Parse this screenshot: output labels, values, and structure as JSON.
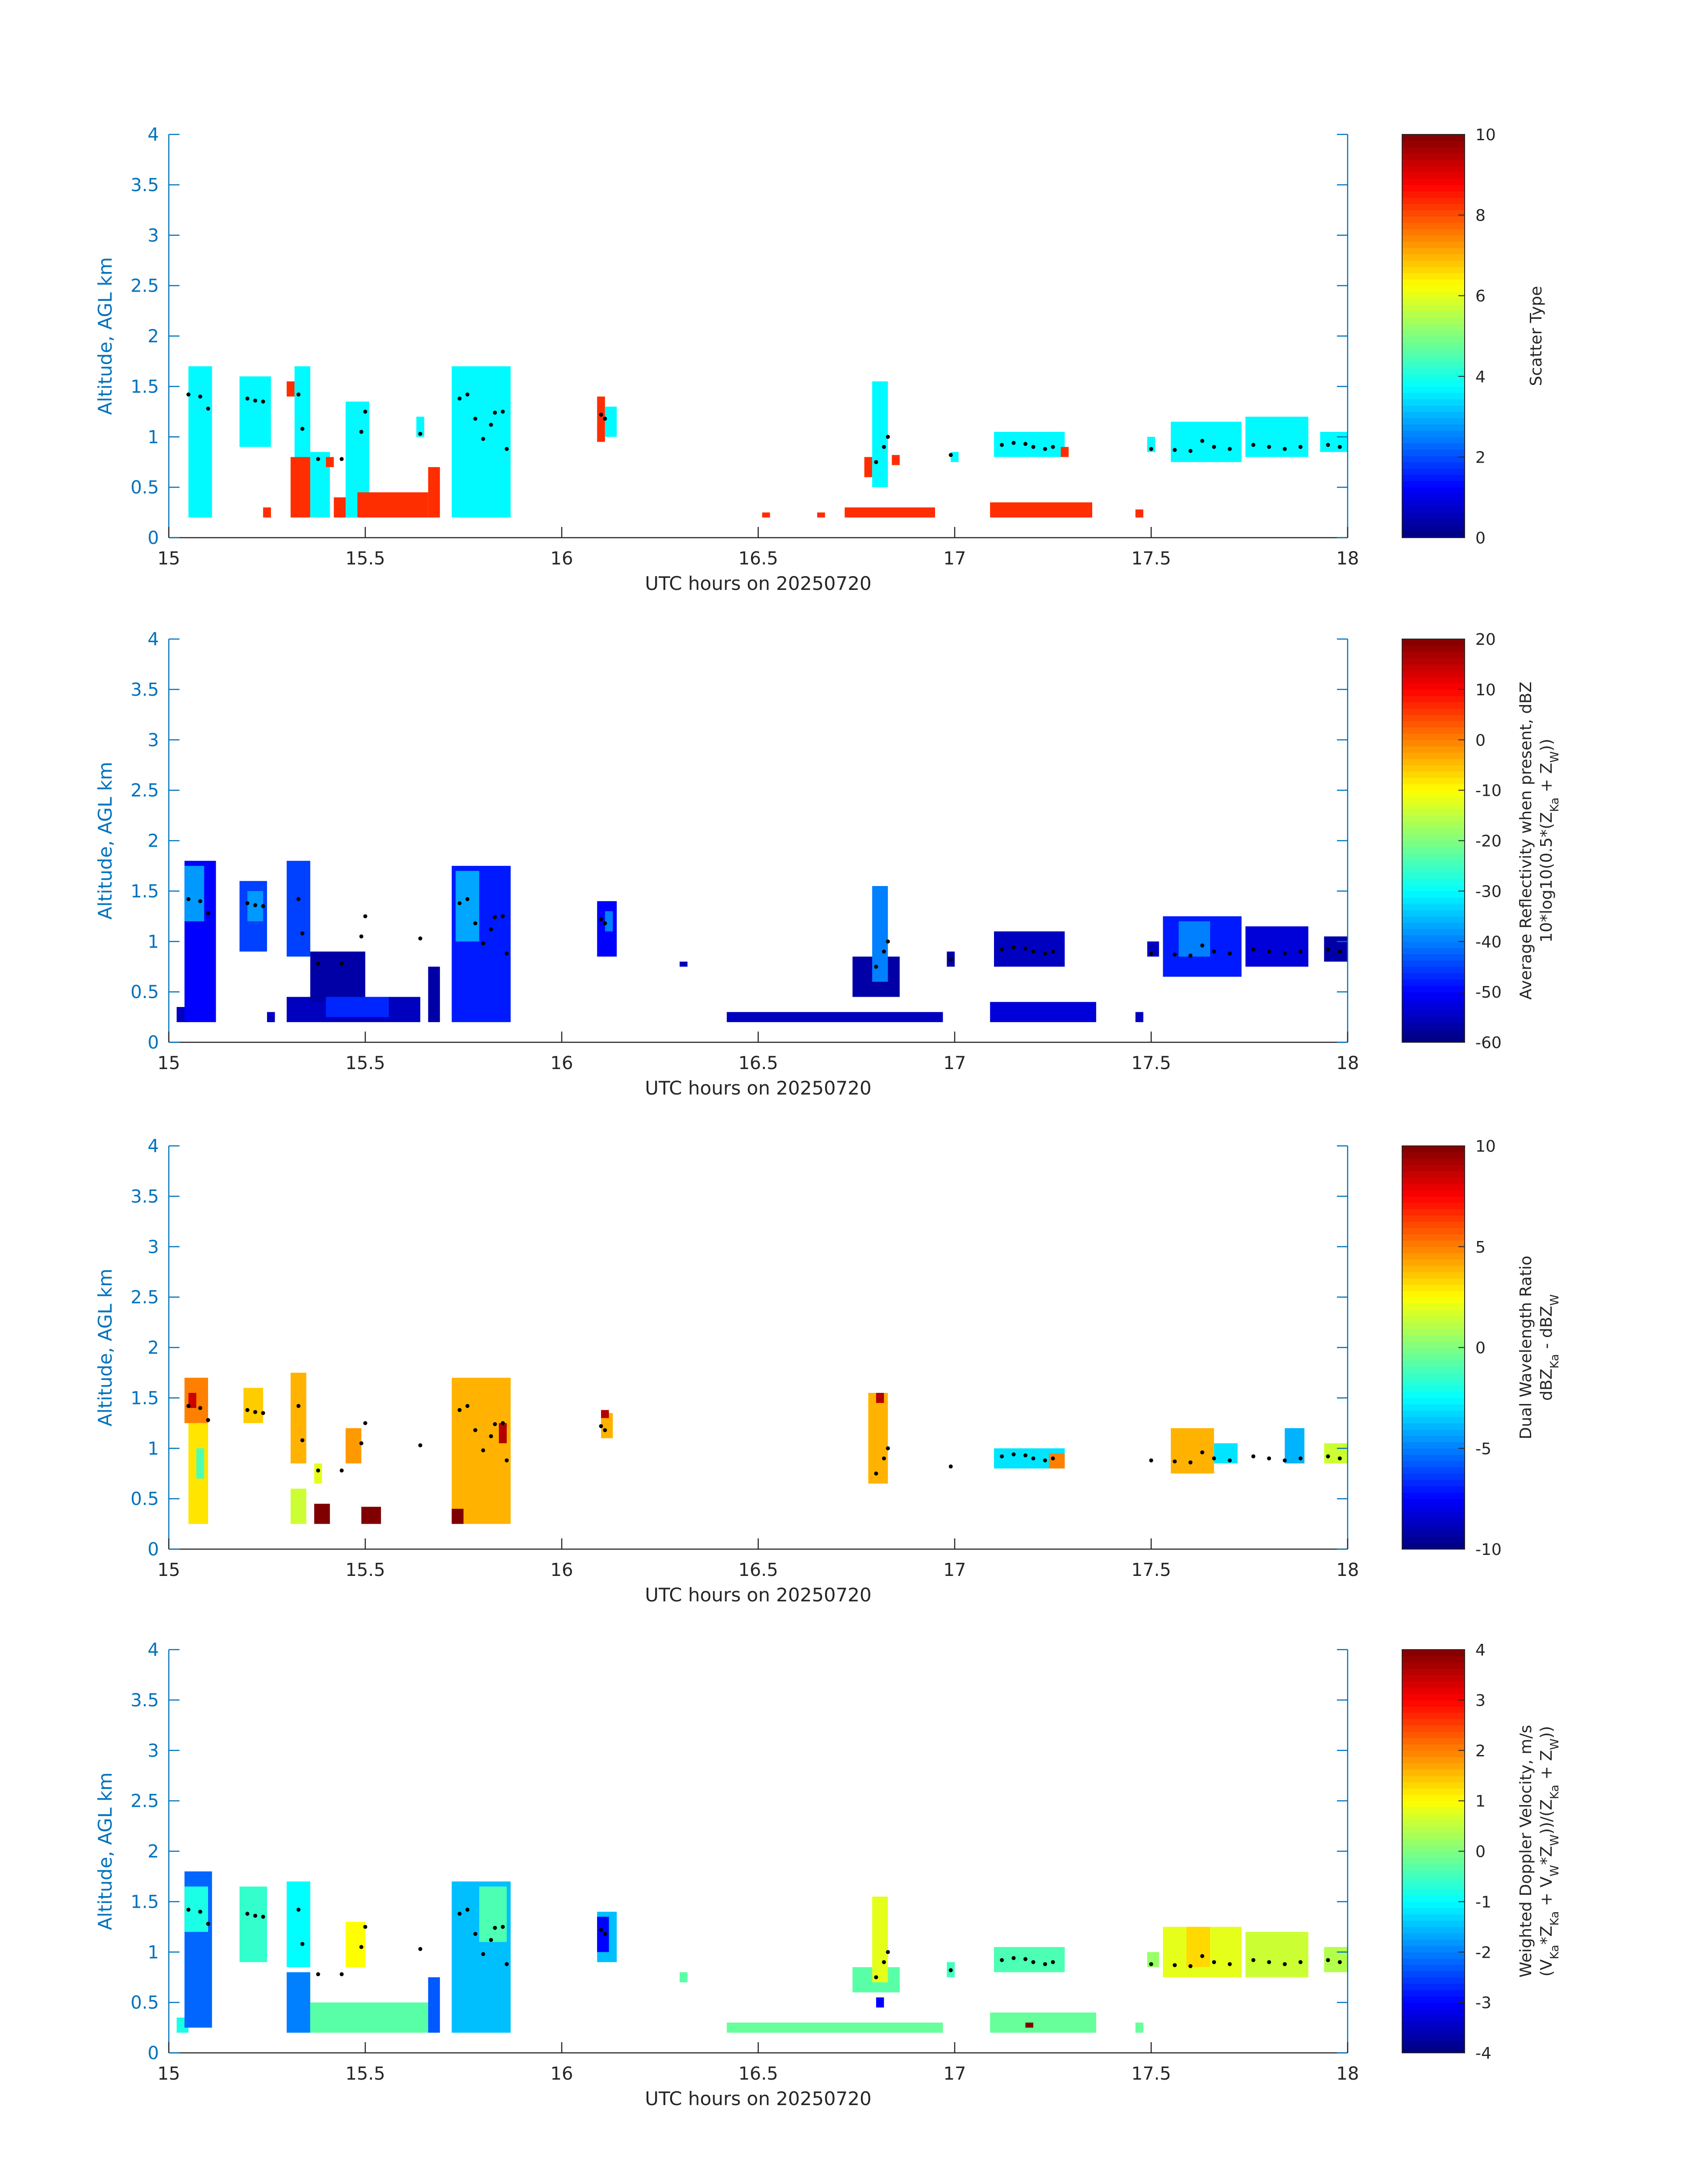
{
  "figure": {
    "date": "20250720"
  },
  "chart_data": [
    {
      "type": "heatmap",
      "id": "scatter-type",
      "xlabel": "UTC hours on 20250720",
      "ylabel": "Altitude, AGL km",
      "xlim": [
        15,
        18
      ],
      "ylim": [
        0,
        4
      ],
      "x_ticks": [
        "15",
        "15.5",
        "16",
        "16.5",
        "17",
        "17.5",
        "18"
      ],
      "y_ticks": [
        "0",
        "0.5",
        "1",
        "1.5",
        "2",
        "2.5",
        "3",
        "3.5",
        "4"
      ],
      "colorbar": {
        "label_lines": [
          "Scatter Type"
        ],
        "range": [
          0,
          10
        ],
        "ticks": [
          "0",
          "2",
          "4",
          "6",
          "8",
          "10"
        ]
      },
      "cells": [
        {
          "x0": 15.05,
          "x1": 15.11,
          "y0": 0.2,
          "y1": 1.7,
          "value": 3.7
        },
        {
          "x0": 15.18,
          "x1": 15.26,
          "y0": 0.9,
          "y1": 1.6,
          "value": 3.7
        },
        {
          "x0": 15.24,
          "x1": 15.26,
          "y0": 0.2,
          "y1": 0.3,
          "value": 8.3
        },
        {
          "x0": 15.3,
          "x1": 15.32,
          "y0": 1.4,
          "y1": 1.55,
          "value": 8.3
        },
        {
          "x0": 15.31,
          "x1": 15.36,
          "y0": 0.2,
          "y1": 0.8,
          "value": 8.3
        },
        {
          "x0": 15.32,
          "x1": 15.36,
          "y0": 0.8,
          "y1": 1.7,
          "value": 3.7
        },
        {
          "x0": 15.36,
          "x1": 15.41,
          "y0": 0.2,
          "y1": 0.85,
          "value": 3.7
        },
        {
          "x0": 15.4,
          "x1": 15.42,
          "y0": 0.7,
          "y1": 0.8,
          "value": 8.3
        },
        {
          "x0": 15.42,
          "x1": 15.46,
          "y0": 0.2,
          "y1": 0.4,
          "value": 8.3
        },
        {
          "x0": 15.45,
          "x1": 15.51,
          "y0": 0.2,
          "y1": 1.35,
          "value": 3.7
        },
        {
          "x0": 15.48,
          "x1": 15.66,
          "y0": 0.2,
          "y1": 0.45,
          "value": 8.3
        },
        {
          "x0": 15.63,
          "x1": 15.65,
          "y0": 1.0,
          "y1": 1.2,
          "value": 3.7
        },
        {
          "x0": 15.66,
          "x1": 15.69,
          "y0": 0.2,
          "y1": 0.7,
          "value": 8.3
        },
        {
          "x0": 15.72,
          "x1": 15.87,
          "y0": 0.2,
          "y1": 1.7,
          "value": 3.7
        },
        {
          "x0": 16.09,
          "x1": 16.11,
          "y0": 0.95,
          "y1": 1.4,
          "value": 8.3
        },
        {
          "x0": 16.11,
          "x1": 16.14,
          "y0": 1.0,
          "y1": 1.3,
          "value": 3.7
        },
        {
          "x0": 16.51,
          "x1": 16.53,
          "y0": 0.2,
          "y1": 0.25,
          "value": 8.3
        },
        {
          "x0": 16.65,
          "x1": 16.67,
          "y0": 0.2,
          "y1": 0.25,
          "value": 8.3
        },
        {
          "x0": 16.72,
          "x1": 16.95,
          "y0": 0.2,
          "y1": 0.3,
          "value": 8.3
        },
        {
          "x0": 16.77,
          "x1": 16.79,
          "y0": 0.6,
          "y1": 0.8,
          "value": 8.3
        },
        {
          "x0": 16.79,
          "x1": 16.83,
          "y0": 0.5,
          "y1": 1.55,
          "value": 3.7
        },
        {
          "x0": 16.84,
          "x1": 16.86,
          "y0": 0.72,
          "y1": 0.82,
          "value": 8.3
        },
        {
          "x0": 16.99,
          "x1": 17.01,
          "y0": 0.75,
          "y1": 0.85,
          "value": 3.7
        },
        {
          "x0": 17.09,
          "x1": 17.35,
          "y0": 0.2,
          "y1": 0.35,
          "value": 8.3
        },
        {
          "x0": 17.1,
          "x1": 17.28,
          "y0": 0.8,
          "y1": 1.05,
          "value": 3.7
        },
        {
          "x0": 17.27,
          "x1": 17.29,
          "y0": 0.8,
          "y1": 0.9,
          "value": 8.3
        },
        {
          "x0": 17.46,
          "x1": 17.48,
          "y0": 0.2,
          "y1": 0.28,
          "value": 8.3
        },
        {
          "x0": 17.49,
          "x1": 17.51,
          "y0": 0.85,
          "y1": 1.0,
          "value": 3.7
        },
        {
          "x0": 17.55,
          "x1": 17.73,
          "y0": 0.75,
          "y1": 1.15,
          "value": 3.7
        },
        {
          "x0": 17.74,
          "x1": 17.9,
          "y0": 0.8,
          "y1": 1.2,
          "value": 3.7
        },
        {
          "x0": 17.93,
          "x1": 18.0,
          "y0": 0.85,
          "y1": 1.05,
          "value": 3.7
        }
      ]
    },
    {
      "type": "heatmap",
      "id": "reflectivity",
      "xlabel": "UTC hours on 20250720",
      "ylabel": "Altitude, AGL km",
      "xlim": [
        15,
        18
      ],
      "ylim": [
        0,
        4
      ],
      "x_ticks": [
        "15",
        "15.5",
        "16",
        "16.5",
        "17",
        "17.5",
        "18"
      ],
      "y_ticks": [
        "0",
        "0.5",
        "1",
        "1.5",
        "2",
        "2.5",
        "3",
        "3.5",
        "4"
      ],
      "colorbar": {
        "label_lines": [
          "Average Reflectivity when present, dBZ",
          "10*log10(0.5*(Z_Ka + Z_W))"
        ],
        "range": [
          -60,
          20
        ],
        "ticks": [
          "-60",
          "-50",
          "-40",
          "-30",
          "-20",
          "-10",
          "0",
          "10",
          "20"
        ]
      },
      "cells": [
        {
          "x0": 15.02,
          "x1": 15.05,
          "y0": 0.2,
          "y1": 0.35,
          "value": -55
        },
        {
          "x0": 15.04,
          "x1": 15.12,
          "y0": 0.2,
          "y1": 1.8,
          "value": -50
        },
        {
          "x0": 15.04,
          "x1": 15.09,
          "y0": 1.2,
          "y1": 1.75,
          "value": -38
        },
        {
          "x0": 15.18,
          "x1": 15.25,
          "y0": 0.9,
          "y1": 1.6,
          "value": -45
        },
        {
          "x0": 15.2,
          "x1": 15.24,
          "y0": 1.2,
          "y1": 1.5,
          "value": -38
        },
        {
          "x0": 15.25,
          "x1": 15.27,
          "y0": 0.2,
          "y1": 0.3,
          "value": -55
        },
        {
          "x0": 15.3,
          "x1": 15.36,
          "y0": 0.85,
          "y1": 1.8,
          "value": -45
        },
        {
          "x0": 15.3,
          "x1": 15.64,
          "y0": 0.2,
          "y1": 0.45,
          "value": -55
        },
        {
          "x0": 15.36,
          "x1": 15.5,
          "y0": 0.4,
          "y1": 0.9,
          "value": -57
        },
        {
          "x0": 15.4,
          "x1": 15.56,
          "y0": 0.25,
          "y1": 0.45,
          "value": -47
        },
        {
          "x0": 15.66,
          "x1": 15.69,
          "y0": 0.2,
          "y1": 0.75,
          "value": -57
        },
        {
          "x0": 15.72,
          "x1": 15.87,
          "y0": 0.2,
          "y1": 1.75,
          "value": -48
        },
        {
          "x0": 15.73,
          "x1": 15.79,
          "y0": 1.0,
          "y1": 1.7,
          "value": -37
        },
        {
          "x0": 16.09,
          "x1": 16.14,
          "y0": 0.85,
          "y1": 1.4,
          "value": -50
        },
        {
          "x0": 16.11,
          "x1": 16.13,
          "y0": 1.1,
          "y1": 1.3,
          "value": -40
        },
        {
          "x0": 16.3,
          "x1": 16.32,
          "y0": 0.75,
          "y1": 0.8,
          "value": -55
        },
        {
          "x0": 16.42,
          "x1": 16.97,
          "y0": 0.2,
          "y1": 0.3,
          "value": -55
        },
        {
          "x0": 16.74,
          "x1": 16.86,
          "y0": 0.45,
          "y1": 0.85,
          "value": -57
        },
        {
          "x0": 16.79,
          "x1": 16.83,
          "y0": 0.6,
          "y1": 1.55,
          "value": -40
        },
        {
          "x0": 16.98,
          "x1": 17.0,
          "y0": 0.75,
          "y1": 0.9,
          "value": -57
        },
        {
          "x0": 17.09,
          "x1": 17.36,
          "y0": 0.2,
          "y1": 0.4,
          "value": -53
        },
        {
          "x0": 17.1,
          "x1": 17.28,
          "y0": 0.75,
          "y1": 1.1,
          "value": -55
        },
        {
          "x0": 17.46,
          "x1": 17.48,
          "y0": 0.2,
          "y1": 0.3,
          "value": -55
        },
        {
          "x0": 17.49,
          "x1": 17.52,
          "y0": 0.85,
          "y1": 1.0,
          "value": -55
        },
        {
          "x0": 17.53,
          "x1": 17.73,
          "y0": 0.65,
          "y1": 1.25,
          "value": -48
        },
        {
          "x0": 17.57,
          "x1": 17.65,
          "y0": 0.85,
          "y1": 1.2,
          "value": -40
        },
        {
          "x0": 17.74,
          "x1": 17.9,
          "y0": 0.75,
          "y1": 1.15,
          "value": -53
        },
        {
          "x0": 17.94,
          "x1": 18.0,
          "y0": 0.8,
          "y1": 1.05,
          "value": -57
        }
      ]
    },
    {
      "type": "heatmap",
      "id": "dual-wavelength-ratio",
      "xlabel": "UTC hours on 20250720",
      "ylabel": "Altitude, AGL km",
      "xlim": [
        15,
        18
      ],
      "ylim": [
        0,
        4
      ],
      "x_ticks": [
        "15",
        "15.5",
        "16",
        "16.5",
        "17",
        "17.5",
        "18"
      ],
      "y_ticks": [
        "0",
        "0.5",
        "1",
        "1.5",
        "2",
        "2.5",
        "3",
        "3.5",
        "4"
      ],
      "colorbar": {
        "label_lines": [
          "Dual Wavelength Ratio",
          "dBZ_Ka - dBZ_W"
        ],
        "range": [
          -10,
          10
        ],
        "ticks": [
          "-10",
          "-5",
          "0",
          "5",
          "10"
        ]
      },
      "cells": [
        {
          "x0": 15.04,
          "x1": 15.1,
          "y0": 1.25,
          "y1": 1.7,
          "value": 5.0
        },
        {
          "x0": 15.05,
          "x1": 15.07,
          "y0": 1.4,
          "y1": 1.55,
          "value": 8.5
        },
        {
          "x0": 15.05,
          "x1": 15.1,
          "y0": 0.25,
          "y1": 1.25,
          "value": 3.0
        },
        {
          "x0": 15.07,
          "x1": 15.09,
          "y0": 0.7,
          "y1": 1.0,
          "value": -1.0
        },
        {
          "x0": 15.19,
          "x1": 15.24,
          "y0": 1.25,
          "y1": 1.6,
          "value": 3.5
        },
        {
          "x0": 15.31,
          "x1": 15.35,
          "y0": 0.85,
          "y1": 1.75,
          "value": 4.0
        },
        {
          "x0": 15.31,
          "x1": 15.35,
          "y0": 0.25,
          "y1": 0.6,
          "value": 1.5
        },
        {
          "x0": 15.37,
          "x1": 15.41,
          "y0": 0.25,
          "y1": 0.45,
          "value": 10
        },
        {
          "x0": 15.37,
          "x1": 15.39,
          "y0": 0.65,
          "y1": 0.85,
          "value": 2.0
        },
        {
          "x0": 15.45,
          "x1": 15.49,
          "y0": 0.85,
          "y1": 1.2,
          "value": 4.5
        },
        {
          "x0": 15.49,
          "x1": 15.54,
          "y0": 0.25,
          "y1": 0.42,
          "value": 10
        },
        {
          "x0": 15.72,
          "x1": 15.87,
          "y0": 0.25,
          "y1": 1.7,
          "value": 4.0
        },
        {
          "x0": 15.72,
          "x1": 15.75,
          "y0": 0.25,
          "y1": 0.4,
          "value": 10
        },
        {
          "x0": 15.84,
          "x1": 15.86,
          "y0": 1.05,
          "y1": 1.25,
          "value": 9.0
        },
        {
          "x0": 16.1,
          "x1": 16.13,
          "y0": 1.1,
          "y1": 1.35,
          "value": 4.0
        },
        {
          "x0": 16.1,
          "x1": 16.12,
          "y0": 1.3,
          "y1": 1.38,
          "value": 9.0
        },
        {
          "x0": 16.78,
          "x1": 16.83,
          "y0": 0.65,
          "y1": 1.55,
          "value": 4.0
        },
        {
          "x0": 16.8,
          "x1": 16.82,
          "y0": 1.45,
          "y1": 1.55,
          "value": 9.0
        },
        {
          "x0": 17.1,
          "x1": 17.28,
          "y0": 0.8,
          "y1": 1.0,
          "value": -3.0
        },
        {
          "x0": 17.24,
          "x1": 17.28,
          "y0": 0.8,
          "y1": 0.95,
          "value": 5.0
        },
        {
          "x0": 17.55,
          "x1": 17.66,
          "y0": 0.75,
          "y1": 1.2,
          "value": 4.0
        },
        {
          "x0": 17.66,
          "x1": 17.72,
          "y0": 0.85,
          "y1": 1.05,
          "value": -3.0
        },
        {
          "x0": 17.84,
          "x1": 17.89,
          "y0": 0.85,
          "y1": 1.2,
          "value": -4.0
        },
        {
          "x0": 17.94,
          "x1": 18.0,
          "y0": 0.85,
          "y1": 1.05,
          "value": 1.5
        }
      ]
    },
    {
      "type": "heatmap",
      "id": "doppler-velocity",
      "xlabel": "UTC hours on 20250720",
      "ylabel": "Altitude, AGL km",
      "xlim": [
        15,
        18
      ],
      "ylim": [
        0,
        4
      ],
      "x_ticks": [
        "15",
        "15.5",
        "16",
        "16.5",
        "17",
        "17.5",
        "18"
      ],
      "y_ticks": [
        "0",
        "0.5",
        "1",
        "1.5",
        "2",
        "2.5",
        "3",
        "3.5",
        "4"
      ],
      "colorbar": {
        "label_lines": [
          "Weighted Doppler Velocity, m/s",
          "(V_Ka*Z_Ka + V_W*Z_W))/(Z_Ka + Z_W))"
        ],
        "range": [
          -4,
          4
        ],
        "ticks": [
          "-4",
          "-3",
          "-2",
          "-1",
          "0",
          "1",
          "2",
          "3",
          "4"
        ]
      },
      "cells": [
        {
          "x0": 15.02,
          "x1": 15.05,
          "y0": 0.2,
          "y1": 0.35,
          "value": -0.8
        },
        {
          "x0": 15.04,
          "x1": 15.11,
          "y0": 0.25,
          "y1": 1.8,
          "value": -2.2
        },
        {
          "x0": 15.04,
          "x1": 15.1,
          "y0": 1.2,
          "y1": 1.65,
          "value": -0.8
        },
        {
          "x0": 15.18,
          "x1": 15.25,
          "y0": 0.9,
          "y1": 1.65,
          "value": -0.6
        },
        {
          "x0": 15.3,
          "x1": 15.36,
          "y0": 0.85,
          "y1": 1.7,
          "value": -1.0
        },
        {
          "x0": 15.3,
          "x1": 15.36,
          "y0": 0.2,
          "y1": 0.8,
          "value": -2.0
        },
        {
          "x0": 15.36,
          "x1": 15.66,
          "y0": 0.2,
          "y1": 0.5,
          "value": -0.3
        },
        {
          "x0": 15.45,
          "x1": 15.5,
          "y0": 0.85,
          "y1": 1.3,
          "value": 1.0
        },
        {
          "x0": 15.66,
          "x1": 15.69,
          "y0": 0.2,
          "y1": 0.75,
          "value": -2.3
        },
        {
          "x0": 15.72,
          "x1": 15.87,
          "y0": 0.2,
          "y1": 1.7,
          "value": -1.5
        },
        {
          "x0": 15.79,
          "x1": 15.86,
          "y0": 1.1,
          "y1": 1.65,
          "value": -0.4
        },
        {
          "x0": 16.09,
          "x1": 16.14,
          "y0": 0.9,
          "y1": 1.4,
          "value": -1.5
        },
        {
          "x0": 16.09,
          "x1": 16.12,
          "y0": 1.0,
          "y1": 1.35,
          "value": -3.0
        },
        {
          "x0": 16.3,
          "x1": 16.32,
          "y0": 0.7,
          "y1": 0.8,
          "value": -0.3
        },
        {
          "x0": 16.42,
          "x1": 16.97,
          "y0": 0.2,
          "y1": 0.3,
          "value": -0.2
        },
        {
          "x0": 16.74,
          "x1": 16.86,
          "y0": 0.6,
          "y1": 0.85,
          "value": -0.3
        },
        {
          "x0": 16.79,
          "x1": 16.83,
          "y0": 0.7,
          "y1": 1.55,
          "value": 0.8
        },
        {
          "x0": 16.8,
          "x1": 16.82,
          "y0": 0.45,
          "y1": 0.55,
          "value": -3.0
        },
        {
          "x0": 16.98,
          "x1": 17.0,
          "y0": 0.75,
          "y1": 0.9,
          "value": -0.5
        },
        {
          "x0": 17.09,
          "x1": 17.36,
          "y0": 0.2,
          "y1": 0.4,
          "value": -0.2
        },
        {
          "x0": 17.18,
          "x1": 17.2,
          "y0": 0.25,
          "y1": 0.3,
          "value": 4.0
        },
        {
          "x0": 17.1,
          "x1": 17.28,
          "y0": 0.8,
          "y1": 1.05,
          "value": -0.4
        },
        {
          "x0": 17.46,
          "x1": 17.48,
          "y0": 0.2,
          "y1": 0.3,
          "value": -0.2
        },
        {
          "x0": 17.49,
          "x1": 17.52,
          "y0": 0.85,
          "y1": 1.0,
          "value": 0.2
        },
        {
          "x0": 17.53,
          "x1": 17.73,
          "y0": 0.75,
          "y1": 1.25,
          "value": 0.8
        },
        {
          "x0": 17.59,
          "x1": 17.65,
          "y0": 0.85,
          "y1": 1.25,
          "value": 1.3
        },
        {
          "x0": 17.74,
          "x1": 17.9,
          "y0": 0.75,
          "y1": 1.2,
          "value": 0.6
        },
        {
          "x0": 17.94,
          "x1": 18.0,
          "y0": 0.8,
          "y1": 1.05,
          "value": 0.4
        }
      ]
    }
  ],
  "cloud_base_markers": [
    [
      15.05,
      1.42
    ],
    [
      15.08,
      1.4
    ],
    [
      15.1,
      1.28
    ],
    [
      15.2,
      1.38
    ],
    [
      15.22,
      1.36
    ],
    [
      15.24,
      1.35
    ],
    [
      15.33,
      1.42
    ],
    [
      15.34,
      1.08
    ],
    [
      15.38,
      0.78
    ],
    [
      15.44,
      0.78
    ],
    [
      15.49,
      1.05
    ],
    [
      15.5,
      1.25
    ],
    [
      15.64,
      1.03
    ],
    [
      15.74,
      1.38
    ],
    [
      15.76,
      1.42
    ],
    [
      15.78,
      1.18
    ],
    [
      15.8,
      0.98
    ],
    [
      15.82,
      1.12
    ],
    [
      15.83,
      1.24
    ],
    [
      15.85,
      1.25
    ],
    [
      15.86,
      0.88
    ],
    [
      16.1,
      1.22
    ],
    [
      16.11,
      1.18
    ],
    [
      16.8,
      0.75
    ],
    [
      16.82,
      0.9
    ],
    [
      16.83,
      1.0
    ],
    [
      16.99,
      0.82
    ],
    [
      17.12,
      0.92
    ],
    [
      17.15,
      0.94
    ],
    [
      17.18,
      0.93
    ],
    [
      17.2,
      0.9
    ],
    [
      17.23,
      0.88
    ],
    [
      17.25,
      0.9
    ],
    [
      17.5,
      0.88
    ],
    [
      17.56,
      0.87
    ],
    [
      17.6,
      0.86
    ],
    [
      17.63,
      0.96
    ],
    [
      17.66,
      0.9
    ],
    [
      17.7,
      0.88
    ],
    [
      17.76,
      0.92
    ],
    [
      17.8,
      0.9
    ],
    [
      17.84,
      0.88
    ],
    [
      17.88,
      0.9
    ],
    [
      17.95,
      0.92
    ],
    [
      17.98,
      0.9
    ]
  ]
}
